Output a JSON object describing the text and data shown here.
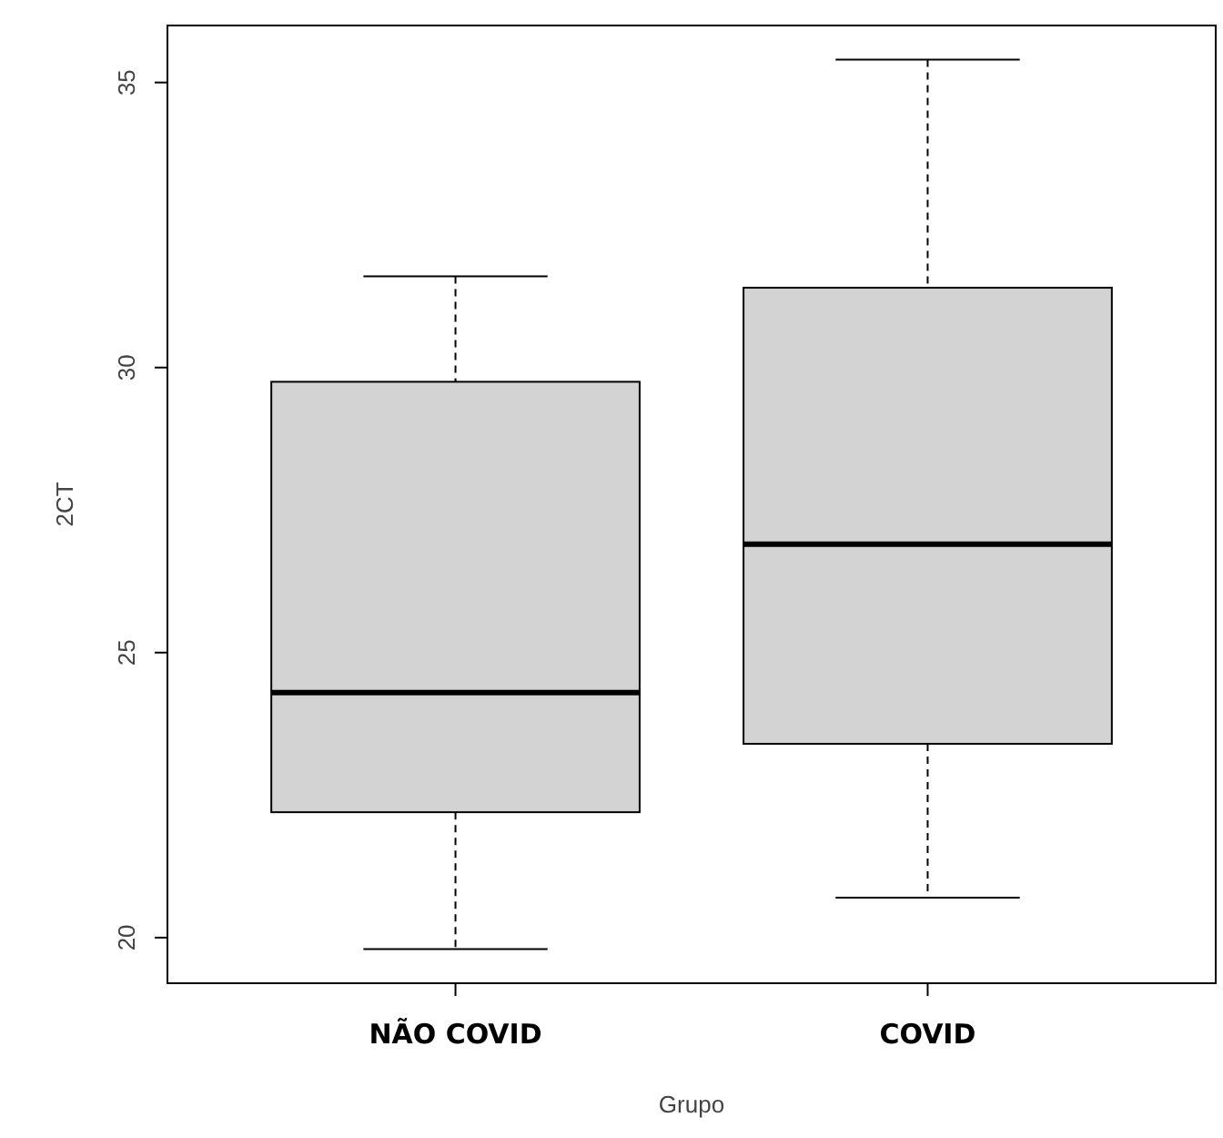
{
  "chart_data": {
    "type": "box",
    "xlabel": "Grupo",
    "ylabel": "2CT",
    "categories": [
      "NÃO COVID",
      "COVID"
    ],
    "color": "#d3d3d3",
    "boxes": [
      {
        "low": 19.8,
        "q1": 22.2,
        "median": 24.3,
        "q3": 29.75,
        "high": 31.6
      },
      {
        "low": 20.7,
        "q1": 23.4,
        "median": 26.9,
        "q3": 31.4,
        "high": 35.4
      }
    ],
    "ylim": [
      19.2,
      36
    ],
    "yticks": [
      20,
      25,
      30,
      35
    ],
    "grid": false
  }
}
